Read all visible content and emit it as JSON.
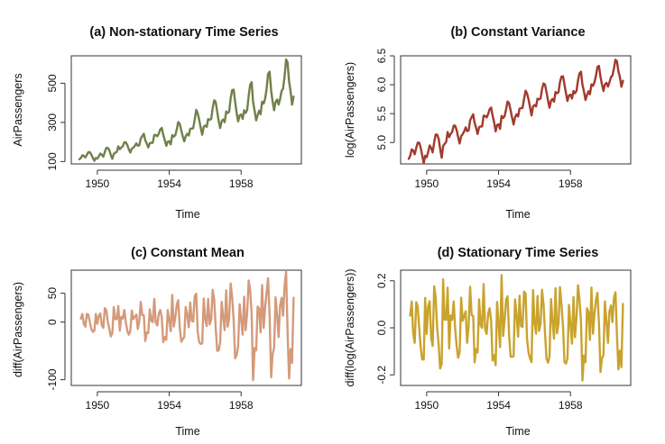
{
  "chart_data": [
    {
      "type": "line",
      "title": "(a) Non-stationary Time Series",
      "xlabel": "Time",
      "ylabel": "AirPassengers",
      "color": "#71804a",
      "x_start": 1949,
      "frequency": 12,
      "xlim": [
        1948.55,
        1961.35
      ],
      "ylim": [
        88,
        640
      ],
      "x_ticks": [
        1950,
        1954,
        1958
      ],
      "y_ticks": [
        100,
        300,
        500
      ],
      "values": [
        112,
        118,
        132,
        129,
        121,
        135,
        148,
        148,
        136,
        119,
        104,
        118,
        115,
        126,
        141,
        135,
        125,
        149,
        170,
        170,
        158,
        133,
        114,
        140,
        145,
        150,
        178,
        163,
        172,
        178,
        199,
        199,
        184,
        162,
        146,
        166,
        171,
        180,
        193,
        181,
        183,
        218,
        230,
        242,
        209,
        191,
        172,
        194,
        196,
        196,
        236,
        235,
        229,
        243,
        264,
        272,
        237,
        211,
        180,
        201,
        204,
        188,
        235,
        227,
        234,
        264,
        302,
        293,
        259,
        229,
        203,
        229,
        242,
        233,
        267,
        269,
        270,
        315,
        364,
        347,
        312,
        274,
        237,
        278,
        284,
        277,
        317,
        313,
        318,
        374,
        413,
        405,
        355,
        306,
        271,
        306,
        315,
        301,
        356,
        348,
        355,
        422,
        465,
        467,
        404,
        347,
        305,
        336,
        340,
        318,
        362,
        348,
        363,
        435,
        491,
        505,
        404,
        359,
        310,
        337,
        360,
        342,
        406,
        396,
        420,
        472,
        548,
        559,
        463,
        407,
        362,
        405,
        417,
        391,
        419,
        461,
        472,
        535,
        622,
        606,
        508,
        461,
        390,
        432
      ]
    },
    {
      "type": "line",
      "title": "(b) Constant Variance",
      "xlabel": "Time",
      "ylabel": "log(AirPassengers)",
      "color": "#a13a2d",
      "x_start": 1949,
      "frequency": 12,
      "xlim": [
        1948.55,
        1961.35
      ],
      "ylim": [
        4.63,
        6.5
      ],
      "x_ticks": [
        1950,
        1954,
        1958
      ],
      "y_ticks": [
        5.0,
        5.5,
        6.0,
        6.5
      ],
      "y_tick_labels": [
        "5.0",
        "5.5",
        "6.0",
        "6.5"
      ],
      "values": [
        4.718,
        4.771,
        4.883,
        4.86,
        4.796,
        4.905,
        4.997,
        4.997,
        4.913,
        4.779,
        4.644,
        4.771,
        4.745,
        4.836,
        4.949,
        4.905,
        4.828,
        5.004,
        5.136,
        5.136,
        5.063,
        4.89,
        4.736,
        4.942,
        4.977,
        5.011,
        5.182,
        5.094,
        5.147,
        5.182,
        5.293,
        5.293,
        5.215,
        5.088,
        4.984,
        5.112,
        5.142,
        5.193,
        5.263,
        5.198,
        5.209,
        5.384,
        5.438,
        5.489,
        5.342,
        5.252,
        5.147,
        5.268,
        5.278,
        5.278,
        5.464,
        5.46,
        5.434,
        5.493,
        5.576,
        5.606,
        5.468,
        5.352,
        5.193,
        5.303,
        5.318,
        5.236,
        5.46,
        5.425,
        5.455,
        5.576,
        5.71,
        5.68,
        5.557,
        5.434,
        5.313,
        5.434,
        5.489,
        5.451,
        5.587,
        5.595,
        5.598,
        5.753,
        5.897,
        5.849,
        5.743,
        5.613,
        5.468,
        5.628,
        5.649,
        5.624,
        5.759,
        5.746,
        5.762,
        5.924,
        6.023,
        6.004,
        5.872,
        5.724,
        5.602,
        5.724,
        5.753,
        5.707,
        5.875,
        5.852,
        5.872,
        6.045,
        6.142,
        6.146,
        6.001,
        5.849,
        5.72,
        5.817,
        5.829,
        5.762,
        5.892,
        5.852,
        5.894,
        6.075,
        6.196,
        6.225,
        6.001,
        5.883,
        5.737,
        5.82,
        5.886,
        5.835,
        6.006,
        5.981,
        6.04,
        6.157,
        6.306,
        6.326,
        6.138,
        6.009,
        5.892,
        6.004,
        6.033,
        5.969,
        6.038,
        6.133,
        6.157,
        6.282,
        6.433,
        6.407,
        6.23,
        6.133,
        5.966,
        6.068
      ]
    },
    {
      "type": "line",
      "title": "(c) Constant Mean",
      "xlabel": "Time",
      "ylabel": "diff(AirPassengers)",
      "color": "#d49a7a",
      "x_start": 1949.0833,
      "frequency": 12,
      "xlim": [
        1948.55,
        1961.35
      ],
      "ylim": [
        -110,
        90
      ],
      "x_ticks": [
        1950,
        1954,
        1958
      ],
      "y_ticks": [
        -100,
        0,
        50
      ],
      "values": [
        6,
        14,
        -3,
        -8,
        14,
        13,
        0,
        -12,
        -17,
        -15,
        14,
        -3,
        11,
        15,
        -6,
        -10,
        24,
        21,
        0,
        -12,
        -25,
        -19,
        26,
        5,
        5,
        28,
        -15,
        9,
        6,
        21,
        0,
        -15,
        -22,
        -16,
        20,
        5,
        9,
        13,
        -12,
        2,
        35,
        12,
        12,
        -33,
        -18,
        -19,
        22,
        2,
        0,
        40,
        -1,
        -6,
        14,
        21,
        8,
        -35,
        -26,
        -31,
        21,
        3,
        -16,
        47,
        -8,
        7,
        30,
        38,
        -9,
        -34,
        -30,
        -26,
        26,
        13,
        -9,
        34,
        2,
        1,
        45,
        49,
        -17,
        -35,
        -38,
        -37,
        41,
        6,
        -7,
        40,
        -4,
        5,
        56,
        39,
        -8,
        -50,
        -49,
        -35,
        35,
        9,
        -14,
        55,
        -8,
        7,
        67,
        43,
        2,
        -63,
        -57,
        -42,
        31,
        4,
        -22,
        44,
        -14,
        15,
        72,
        56,
        14,
        -101,
        -45,
        -49,
        27,
        23,
        -18,
        64,
        -10,
        24,
        52,
        76,
        11,
        -96,
        -56,
        -45,
        43,
        12,
        -26,
        28,
        42,
        11,
        63,
        87,
        -16,
        -98,
        -47,
        -71,
        42
      ]
    },
    {
      "type": "line",
      "title": "(d) Stationary Time Series",
      "xlabel": "Time",
      "ylabel": "diff(log(AirPassengers))",
      "color": "#c9a32e",
      "x_start": 1949.0833,
      "frequency": 12,
      "xlim": [
        1948.55,
        1961.35
      ],
      "ylim": [
        -0.245,
        0.245
      ],
      "x_ticks": [
        1950,
        1954,
        1958
      ],
      "y_ticks": [
        -0.2,
        0.0,
        0.2
      ],
      "y_tick_labels": [
        "-0.2",
        "0.0",
        "0.2"
      ],
      "values": [
        0.052,
        0.112,
        -0.023,
        -0.064,
        0.109,
        0.092,
        0.0,
        -0.084,
        -0.134,
        -0.135,
        0.127,
        -0.026,
        0.091,
        0.113,
        -0.044,
        -0.077,
        0.176,
        0.132,
        0.0,
        -0.073,
        -0.173,
        -0.154,
        0.206,
        0.035,
        0.034,
        0.171,
        -0.088,
        0.053,
        0.034,
        0.112,
        0.0,
        -0.078,
        -0.127,
        -0.104,
        0.128,
        0.03,
        0.051,
        0.07,
        -0.064,
        0.011,
        0.174,
        0.054,
        0.051,
        -0.147,
        -0.09,
        -0.105,
        0.121,
        0.01,
        0.0,
        0.186,
        -0.004,
        -0.026,
        0.059,
        0.083,
        0.03,
        -0.139,
        -0.116,
        -0.159,
        0.11,
        0.015,
        -0.082,
        0.224,
        -0.035,
        0.03,
        0.121,
        0.134,
        -0.03,
        -0.123,
        -0.123,
        -0.121,
        0.121,
        0.055,
        -0.038,
        0.136,
        0.007,
        0.004,
        0.154,
        0.145,
        -0.048,
        -0.106,
        -0.13,
        -0.146,
        0.16,
        0.021,
        -0.025,
        0.135,
        -0.013,
        0.016,
        0.162,
        0.099,
        -0.02,
        -0.132,
        -0.148,
        -0.122,
        0.122,
        0.029,
        -0.046,
        0.168,
        -0.023,
        0.02,
        0.173,
        0.097,
        0.004,
        -0.145,
        -0.152,
        -0.129,
        0.097,
        0.012,
        -0.067,
        0.13,
        -0.04,
        0.042,
        0.181,
        0.121,
        0.028,
        -0.224,
        -0.118,
        -0.146,
        0.083,
        0.066,
        -0.051,
        0.171,
        -0.025,
        0.059,
        0.117,
        0.149,
        0.02,
        -0.188,
        -0.129,
        -0.117,
        0.112,
        0.029,
        -0.064,
        0.069,
        0.095,
        0.024,
        0.126,
        0.151,
        -0.026,
        -0.177,
        -0.097,
        -0.167,
        0.102
      ]
    }
  ]
}
